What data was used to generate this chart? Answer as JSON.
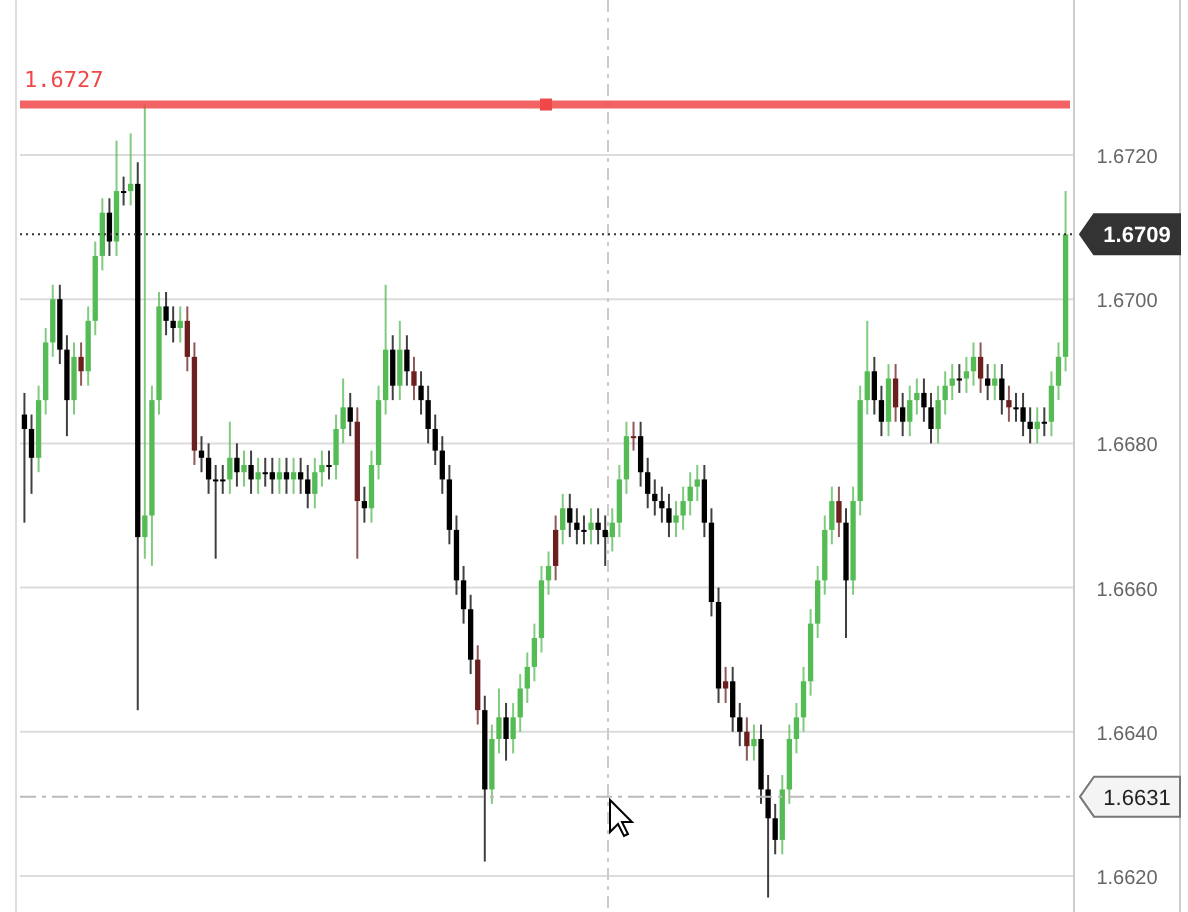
{
  "chart_data": {
    "type": "candlestick",
    "categories": [
      null,
      null,
      null,
      null,
      null,
      null,
      null,
      null,
      null,
      null,
      null,
      null,
      null,
      null,
      null,
      null,
      null,
      null,
      null,
      null,
      null,
      null,
      null,
      null,
      null,
      null,
      null,
      null,
      null,
      null,
      null,
      null,
      null,
      null,
      null,
      null,
      null,
      null,
      null,
      null,
      null,
      null,
      null,
      null,
      null,
      null,
      null,
      null,
      null,
      null,
      null,
      null,
      null,
      null,
      null,
      null,
      null,
      null,
      null,
      null,
      null,
      null,
      null,
      null,
      null,
      null,
      null,
      null,
      null,
      null,
      null,
      null,
      null,
      null,
      null,
      null,
      null,
      null,
      null,
      null,
      null,
      null,
      null,
      null,
      null,
      null,
      null,
      null,
      null,
      null,
      null,
      null,
      null,
      null,
      null,
      null,
      null,
      null,
      null,
      null,
      null,
      null,
      null,
      null,
      null,
      null,
      null,
      null,
      null,
      null,
      null,
      null,
      null,
      null,
      null,
      null,
      null,
      null,
      null,
      null,
      null,
      null,
      null,
      null,
      null,
      null,
      null,
      null,
      null,
      null,
      null,
      null,
      null,
      null,
      null,
      null,
      null,
      null,
      null,
      null,
      null,
      null,
      null,
      null,
      null,
      null,
      null,
      null
    ],
    "ohlc": [
      [
        1.6684,
        1.6687,
        1.6669,
        1.6682
      ],
      [
        1.6682,
        1.6684,
        1.6673,
        1.6678
      ],
      [
        1.6678,
        1.6688,
        1.6676,
        1.6686
      ],
      [
        1.6686,
        1.6696,
        1.6684,
        1.6694
      ],
      [
        1.6694,
        1.6702,
        1.6692,
        1.67
      ],
      [
        1.67,
        1.6702,
        1.6691,
        1.6693
      ],
      [
        1.6693,
        1.6695,
        1.6681,
        1.6686
      ],
      [
        1.6686,
        1.6694,
        1.6684,
        1.6692
      ],
      [
        1.6692,
        1.6694,
        1.6688,
        1.669
      ],
      [
        1.669,
        1.6699,
        1.6688,
        1.6697
      ],
      [
        1.6697,
        1.6708,
        1.6695,
        1.6706
      ],
      [
        1.6706,
        1.6714,
        1.6704,
        1.6712
      ],
      [
        1.6712,
        1.6714,
        1.6706,
        1.6708
      ],
      [
        1.6708,
        1.6722,
        1.6706,
        1.6715
      ],
      [
        1.6715,
        1.6717,
        1.6713,
        1.6715
      ],
      [
        1.6715,
        1.6723,
        1.6713,
        1.6716
      ],
      [
        1.6716,
        1.6719,
        1.6643,
        1.6667
      ],
      [
        1.6667,
        1.6727,
        1.6664,
        1.667
      ],
      [
        1.667,
        1.6688,
        1.6663,
        1.6686
      ],
      [
        1.6686,
        1.6701,
        1.6684,
        1.6699
      ],
      [
        1.6699,
        1.6701,
        1.6695,
        1.6697
      ],
      [
        1.6697,
        1.6699,
        1.6694,
        1.6696
      ],
      [
        1.6696,
        1.6699,
        1.6694,
        1.6697
      ],
      [
        1.6697,
        1.6699,
        1.669,
        1.6692
      ],
      [
        1.6692,
        1.6694,
        1.6677,
        1.6679
      ],
      [
        1.6679,
        1.6681,
        1.6676,
        1.6678
      ],
      [
        1.6678,
        1.668,
        1.6673,
        1.6675
      ],
      [
        1.6675,
        1.6677,
        1.6664,
        1.6675
      ],
      [
        1.6675,
        1.6677,
        1.6673,
        1.6675
      ],
      [
        1.6675,
        1.6683,
        1.6673,
        1.6678
      ],
      [
        1.6678,
        1.668,
        1.6674,
        1.6676
      ],
      [
        1.6676,
        1.6679,
        1.6674,
        1.6677
      ],
      [
        1.6677,
        1.6679,
        1.6673,
        1.6675
      ],
      [
        1.6675,
        1.6678,
        1.6673,
        1.6676
      ],
      [
        1.6676,
        1.6678,
        1.6674,
        1.6676
      ],
      [
        1.6676,
        1.6678,
        1.6673,
        1.6675
      ],
      [
        1.6675,
        1.6678,
        1.6673,
        1.6676
      ],
      [
        1.6676,
        1.6678,
        1.6673,
        1.6675
      ],
      [
        1.6675,
        1.6678,
        1.6673,
        1.6676
      ],
      [
        1.6676,
        1.6678,
        1.6673,
        1.6675
      ],
      [
        1.6675,
        1.6677,
        1.6671,
        1.6673
      ],
      [
        1.6673,
        1.6678,
        1.6671,
        1.6676
      ],
      [
        1.6676,
        1.6679,
        1.6674,
        1.6677
      ],
      [
        1.6677,
        1.6679,
        1.6675,
        1.6677
      ],
      [
        1.6677,
        1.6684,
        1.6675,
        1.6682
      ],
      [
        1.6682,
        1.6689,
        1.668,
        1.6685
      ],
      [
        1.6685,
        1.6687,
        1.6681,
        1.6683
      ],
      [
        1.6683,
        1.6685,
        1.6664,
        1.6672
      ],
      [
        1.6672,
        1.6674,
        1.6669,
        1.6671
      ],
      [
        1.6671,
        1.6679,
        1.6669,
        1.6677
      ],
      [
        1.6677,
        1.6688,
        1.6675,
        1.6686
      ],
      [
        1.6686,
        1.6702,
        1.6684,
        1.6693
      ],
      [
        1.6693,
        1.6695,
        1.6686,
        1.6688
      ],
      [
        1.6688,
        1.6697,
        1.6686,
        1.6693
      ],
      [
        1.6693,
        1.6695,
        1.6688,
        1.669
      ],
      [
        1.669,
        1.6692,
        1.6686,
        1.6688
      ],
      [
        1.6688,
        1.669,
        1.6684,
        1.6686
      ],
      [
        1.6686,
        1.6688,
        1.668,
        1.6682
      ],
      [
        1.6682,
        1.6684,
        1.6677,
        1.6679
      ],
      [
        1.6679,
        1.6681,
        1.6673,
        1.6675
      ],
      [
        1.6675,
        1.6677,
        1.6666,
        1.6668
      ],
      [
        1.6668,
        1.667,
        1.6659,
        1.6661
      ],
      [
        1.6661,
        1.6663,
        1.6655,
        1.6657
      ],
      [
        1.6657,
        1.6659,
        1.6648,
        1.665
      ],
      [
        1.665,
        1.6652,
        1.6641,
        1.6643
      ],
      [
        1.6643,
        1.6645,
        1.6622,
        1.6632
      ],
      [
        1.6632,
        1.6641,
        1.663,
        1.6639
      ],
      [
        1.6639,
        1.6646,
        1.6637,
        1.6642
      ],
      [
        1.6642,
        1.6644,
        1.6636,
        1.6639
      ],
      [
        1.6639,
        1.6644,
        1.6637,
        1.6642
      ],
      [
        1.6642,
        1.6648,
        1.664,
        1.6646
      ],
      [
        1.6646,
        1.6651,
        1.6644,
        1.6649
      ],
      [
        1.6649,
        1.6655,
        1.6647,
        1.6653
      ],
      [
        1.6653,
        1.6663,
        1.6651,
        1.6661
      ],
      [
        1.6661,
        1.6665,
        1.6659,
        1.6663
      ],
      [
        1.6663,
        1.667,
        1.6661,
        1.6668
      ],
      [
        1.6668,
        1.6673,
        1.6666,
        1.6671
      ],
      [
        1.6671,
        1.6673,
        1.6667,
        1.6669
      ],
      [
        1.6669,
        1.6671,
        1.6666,
        1.6668
      ],
      [
        1.6668,
        1.667,
        1.6666,
        1.6668
      ],
      [
        1.6668,
        1.6671,
        1.6666,
        1.6669
      ],
      [
        1.6669,
        1.6671,
        1.6666,
        1.6668
      ],
      [
        1.6668,
        1.667,
        1.6663,
        1.6667
      ],
      [
        1.6667,
        1.6671,
        1.6665,
        1.6669
      ],
      [
        1.6669,
        1.6677,
        1.6667,
        1.6675
      ],
      [
        1.6675,
        1.6683,
        1.6673,
        1.6681
      ],
      [
        1.6681,
        1.6683,
        1.6679,
        1.6681
      ],
      [
        1.6681,
        1.6683,
        1.6674,
        1.6676
      ],
      [
        1.6676,
        1.6678,
        1.6671,
        1.6673
      ],
      [
        1.6673,
        1.6675,
        1.667,
        1.6672
      ],
      [
        1.6672,
        1.6674,
        1.6669,
        1.6671
      ],
      [
        1.6671,
        1.6673,
        1.6667,
        1.6669
      ],
      [
        1.6669,
        1.6672,
        1.6667,
        1.667
      ],
      [
        1.667,
        1.6674,
        1.6668,
        1.6672
      ],
      [
        1.6672,
        1.6676,
        1.667,
        1.6674
      ],
      [
        1.6674,
        1.6677,
        1.6672,
        1.6675
      ],
      [
        1.6675,
        1.6677,
        1.6667,
        1.6669
      ],
      [
        1.6669,
        1.6671,
        1.6656,
        1.6658
      ],
      [
        1.6658,
        1.666,
        1.6644,
        1.6646
      ],
      [
        1.6646,
        1.6649,
        1.6644,
        1.6647
      ],
      [
        1.6647,
        1.6649,
        1.664,
        1.6642
      ],
      [
        1.6642,
        1.6644,
        1.6638,
        1.664
      ],
      [
        1.664,
        1.6642,
        1.6636,
        1.6638
      ],
      [
        1.6638,
        1.6641,
        1.6636,
        1.6639
      ],
      [
        1.6639,
        1.6641,
        1.663,
        1.6632
      ],
      [
        1.6632,
        1.6634,
        1.6617,
        1.6628
      ],
      [
        1.6628,
        1.663,
        1.6623,
        1.6625
      ],
      [
        1.6625,
        1.6634,
        1.6623,
        1.6632
      ],
      [
        1.6632,
        1.6641,
        1.663,
        1.6639
      ],
      [
        1.6639,
        1.6644,
        1.6637,
        1.6642
      ],
      [
        1.6642,
        1.6649,
        1.664,
        1.6647
      ],
      [
        1.6647,
        1.6657,
        1.6645,
        1.6655
      ],
      [
        1.6655,
        1.6663,
        1.6653,
        1.6661
      ],
      [
        1.6661,
        1.667,
        1.6659,
        1.6668
      ],
      [
        1.6668,
        1.6674,
        1.6666,
        1.6672
      ],
      [
        1.6672,
        1.6674,
        1.6667,
        1.6669
      ],
      [
        1.6669,
        1.6671,
        1.6653,
        1.6661
      ],
      [
        1.6661,
        1.6674,
        1.6659,
        1.6672
      ],
      [
        1.6672,
        1.6688,
        1.667,
        1.6686
      ],
      [
        1.6686,
        1.6697,
        1.6684,
        1.669
      ],
      [
        1.669,
        1.6692,
        1.6684,
        1.6686
      ],
      [
        1.6686,
        1.6688,
        1.6681,
        1.6683
      ],
      [
        1.6683,
        1.6691,
        1.6681,
        1.6689
      ],
      [
        1.6689,
        1.6691,
        1.6683,
        1.6685
      ],
      [
        1.6685,
        1.6687,
        1.6681,
        1.6683
      ],
      [
        1.6683,
        1.6688,
        1.6681,
        1.6686
      ],
      [
        1.6686,
        1.6689,
        1.6684,
        1.6687
      ],
      [
        1.6687,
        1.6689,
        1.6683,
        1.6685
      ],
      [
        1.6685,
        1.6687,
        1.668,
        1.6682
      ],
      [
        1.6682,
        1.6688,
        1.668,
        1.6686
      ],
      [
        1.6686,
        1.669,
        1.6684,
        1.6688
      ],
      [
        1.6688,
        1.6691,
        1.6686,
        1.6689
      ],
      [
        1.6689,
        1.6691,
        1.6687,
        1.6689
      ],
      [
        1.6689,
        1.6692,
        1.6687,
        1.669
      ],
      [
        1.669,
        1.6694,
        1.6688,
        1.6692
      ],
      [
        1.6692,
        1.6694,
        1.6687,
        1.6689
      ],
      [
        1.6689,
        1.6691,
        1.6686,
        1.6688
      ],
      [
        1.6688,
        1.6691,
        1.6686,
        1.6689
      ],
      [
        1.6689,
        1.6691,
        1.6684,
        1.6686
      ],
      [
        1.6686,
        1.6688,
        1.6683,
        1.6685
      ],
      [
        1.6685,
        1.6687,
        1.6683,
        1.6685
      ],
      [
        1.6685,
        1.6687,
        1.6681,
        1.6683
      ],
      [
        1.6683,
        1.6685,
        1.668,
        1.6682
      ],
      [
        1.6682,
        1.6685,
        1.668,
        1.6683
      ],
      [
        1.6683,
        1.6685,
        1.6681,
        1.6683
      ],
      [
        1.6683,
        1.669,
        1.6681,
        1.6688
      ],
      [
        1.6688,
        1.6694,
        1.6686,
        1.6692
      ],
      [
        1.6692,
        1.6715,
        1.669,
        1.6709
      ]
    ],
    "colors": [
      "#000000",
      "#000000",
      "#55bb55",
      "#55bb55",
      "#55bb55",
      "#000000",
      "#000000",
      "#55bb55",
      "#6b1f1f",
      "#55bb55",
      "#55bb55",
      "#55bb55",
      "#000000",
      "#55bb55",
      "#000000",
      "#55bb55",
      "#000000",
      "#55bb55",
      "#55bb55",
      "#55bb55",
      "#000000",
      "#000000",
      "#55bb55",
      "#6b1f1f",
      "#6b1f1f",
      "#000000",
      "#000000",
      "#000000",
      "#000000",
      "#55bb55",
      "#000000",
      "#55bb55",
      "#000000",
      "#55bb55",
      "#000000",
      "#000000",
      "#55bb55",
      "#000000",
      "#55bb55",
      "#000000",
      "#000000",
      "#55bb55",
      "#55bb55",
      "#000000",
      "#55bb55",
      "#55bb55",
      "#000000",
      "#6b1f1f",
      "#000000",
      "#55bb55",
      "#55bb55",
      "#55bb55",
      "#000000",
      "#55bb55",
      "#000000",
      "#6b1f1f",
      "#000000",
      "#000000",
      "#000000",
      "#000000",
      "#000000",
      "#000000",
      "#000000",
      "#000000",
      "#6b1f1f",
      "#000000",
      "#55bb55",
      "#55bb55",
      "#000000",
      "#55bb55",
      "#55bb55",
      "#55bb55",
      "#55bb55",
      "#55bb55",
      "#55bb55",
      "#6b1f1f",
      "#55bb55",
      "#000000",
      "#000000",
      "#000000",
      "#55bb55",
      "#000000",
      "#000000",
      "#55bb55",
      "#55bb55",
      "#55bb55",
      "#6b1f1f",
      "#000000",
      "#000000",
      "#000000",
      "#000000",
      "#000000",
      "#55bb55",
      "#55bb55",
      "#55bb55",
      "#55bb55",
      "#000000",
      "#000000",
      "#000000",
      "#6b1f1f",
      "#000000",
      "#000000",
      "#6b1f1f",
      "#55bb55",
      "#000000",
      "#000000",
      "#000000",
      "#55bb55",
      "#55bb55",
      "#55bb55",
      "#55bb55",
      "#55bb55",
      "#55bb55",
      "#55bb55",
      "#55bb55",
      "#6b1f1f",
      "#000000",
      "#55bb55",
      "#55bb55",
      "#55bb55",
      "#000000",
      "#000000",
      "#55bb55",
      "#6b1f1f",
      "#000000",
      "#55bb55",
      "#55bb55",
      "#000000",
      "#000000",
      "#55bb55",
      "#55bb55",
      "#55bb55",
      "#000000",
      "#55bb55",
      "#55bb55",
      "#6b1f1f",
      "#000000",
      "#55bb55",
      "#000000",
      "#6b1f1f",
      "#000000",
      "#000000",
      "#000000",
      "#55bb55",
      "#000000",
      "#55bb55",
      "#55bb55",
      "#55bb55"
    ],
    "ylim": [
      1.6615,
      1.67415
    ],
    "yticks": [
      {
        "value": 1.662,
        "label": "1.6620"
      },
      {
        "value": 1.664,
        "label": "1.6640"
      },
      {
        "value": 1.666,
        "label": "1.6660"
      },
      {
        "value": 1.668,
        "label": "1.6680"
      },
      {
        "value": 1.67,
        "label": "1.6700"
      },
      {
        "value": 1.672,
        "label": "1.6720"
      }
    ],
    "grid": "y",
    "tick_labels": "y",
    "ref_lines": [
      {
        "axis": "y",
        "value": 1.6727,
        "label": "1.6727",
        "color": "#f04848",
        "line_style": "solid"
      },
      {
        "axis": "y",
        "value": 1.6709,
        "label": "1.6709",
        "color": "#333333",
        "line_style": "dotted"
      },
      {
        "axis": "y",
        "value": 1.6631,
        "label": "1.6631",
        "color": "#bbbbbb",
        "line_style": "dashed"
      }
    ]
  }
}
